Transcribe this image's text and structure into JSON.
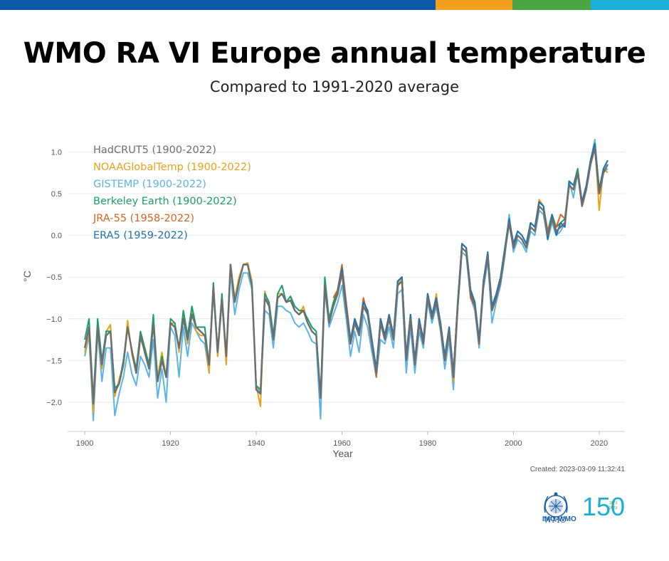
{
  "header": {
    "title": "WMO RA VI Europe annual temperature",
    "subtitle": "Compared to 1991-2020 average",
    "bar_colors": [
      "#0a5aa8",
      "#f2a11f",
      "#4aa545",
      "#1aafd8"
    ]
  },
  "footer": {
    "created": "Created: 2023-03-09 11:32:41",
    "wmo_label": "WMO",
    "anniv_label": "IMO-WMO",
    "anniv_digits": "150",
    "anniv_years": [
      "1873",
      "2023"
    ]
  },
  "chart_data": {
    "type": "line",
    "xlabel": "Year",
    "ylabel": "°C",
    "xlim": [
      1896,
      2026
    ],
    "ylim": [
      -2.35,
      1.2
    ],
    "xticks": [
      1900,
      1920,
      1940,
      1960,
      1980,
      2000,
      2020
    ],
    "yticks": [
      1.0,
      0.5,
      0.0,
      -0.5,
      -1.0,
      -1.5,
      -2.0
    ],
    "ytick_labels": [
      "1.0",
      "0.5",
      "0.0",
      "−0.5",
      "−1.0",
      "−1.5",
      "−2.0"
    ],
    "grid": true,
    "legend": "top-left",
    "base_years": [
      1900,
      2022
    ],
    "base_values": [
      -1.35,
      -1.1,
      -2.02,
      -1.1,
      -1.55,
      -1.2,
      -1.15,
      -1.88,
      -1.78,
      -1.55,
      -1.1,
      -1.38,
      -1.65,
      -1.2,
      -1.4,
      -1.6,
      -1.05,
      -1.75,
      -1.5,
      -1.7,
      -1.05,
      -1.1,
      -1.35,
      -1.0,
      -1.25,
      -0.95,
      -1.1,
      -1.15,
      -1.2,
      -1.55,
      -0.62,
      -1.4,
      -0.75,
      -1.45,
      -0.35,
      -0.8,
      -0.55,
      -0.35,
      -0.35,
      -0.6,
      -1.85,
      -1.9,
      -0.75,
      -0.85,
      -1.25,
      -0.75,
      -0.7,
      -0.8,
      -0.78,
      -0.9,
      -0.95,
      -0.9,
      -1.05,
      -1.15,
      -1.2,
      -1.95,
      -0.6,
      -1.05,
      -0.85,
      -0.7,
      -0.45,
      -0.9,
      -1.3,
      -1.05,
      -1.2,
      -0.85,
      -0.95,
      -1.3,
      -1.65,
      -1.05,
      -1.25,
      -1.0,
      -1.25,
      -0.6,
      -0.55,
      -1.5,
      -1.0,
      -1.55,
      -1.05,
      -1.3,
      -0.75,
      -1.0,
      -0.8,
      -1.1,
      -1.5,
      -1.15,
      -1.7,
      -0.85,
      -0.15,
      -0.2,
      -0.7,
      -0.85,
      -1.3,
      -0.6,
      -0.25,
      -0.9,
      -0.75,
      -0.55,
      -0.2,
      0.15,
      -0.15,
      0.0,
      -0.05,
      -0.15,
      0.1,
      0.05,
      0.35,
      0.3,
      0.0,
      0.2,
      0.05,
      0.1,
      0.15,
      0.6,
      0.55,
      0.75,
      0.35,
      0.55,
      0.85,
      1.05,
      0.5,
      0.75,
      0.85
    ],
    "series": [
      {
        "name": "HadCRUT5 (1900-2022)",
        "color": "#6e6e6e",
        "start": 1900,
        "offsets": [
          0.0,
          0.0,
          0.0,
          0.0,
          0.0,
          0.0,
          0.0,
          0.0,
          0.0,
          0.0,
          0.0,
          0.0,
          0.0,
          0.0,
          0.0,
          0.0,
          0.0,
          0.0,
          0.0,
          0.0,
          0.0,
          0.0,
          0.0,
          0.0,
          0.0,
          0.0,
          0.0,
          0.0,
          0.0,
          0.0,
          0.0,
          0.0,
          0.0,
          0.0,
          0.0,
          0.0,
          0.0,
          0.0,
          0.0,
          0.0,
          0.0,
          0.0,
          0.0,
          0.0,
          0.0,
          0.0,
          0.0,
          0.0,
          0.0,
          0.0,
          0.0,
          0.0,
          0.0,
          0.0,
          0.0,
          0.0,
          0.0,
          0.0,
          0.0,
          0.0,
          0.0,
          0.0,
          0.0,
          0.0,
          0.0,
          0.0,
          0.0,
          0.0,
          0.0,
          0.0,
          0.0,
          0.0,
          0.0,
          0.0,
          0.0,
          0.0,
          0.0,
          0.0,
          0.0,
          0.0,
          0.0,
          0.0,
          0.0,
          0.0,
          0.0,
          0.0,
          0.0,
          0.0,
          0.0,
          0.0,
          0.0,
          0.0,
          0.0,
          0.0,
          0.0,
          0.0,
          0.0,
          0.0,
          0.0,
          0.0,
          0.0,
          0.0,
          0.0,
          0.0,
          0.0,
          0.0,
          0.0,
          0.0,
          0.0,
          0.0,
          0.0,
          0.0,
          0.0,
          0.0,
          0.0,
          0.0,
          0.0,
          0.0,
          0.0,
          0.0,
          0.0,
          0.0,
          0.0
        ]
      },
      {
        "name": "NOAAGlobalTemp (1900-2022)",
        "color": "#e8a317",
        "start": 1900,
        "offsets": [
          -0.05,
          -0.05,
          -0.1,
          0.02,
          -0.05,
          0.05,
          0.08,
          -0.05,
          0.05,
          0.0,
          0.08,
          -0.05,
          0.0,
          -0.05,
          0.05,
          0.05,
          0.0,
          0.05,
          0.1,
          0.0,
          0.0,
          0.05,
          -0.05,
          0.05,
          -0.05,
          0.05,
          -0.05,
          -0.05,
          0.0,
          -0.1,
          0.05,
          -0.05,
          0.0,
          -0.1,
          0.0,
          0.05,
          0.05,
          0.0,
          0.02,
          0.05,
          0.05,
          -0.15,
          0.08,
          0.0,
          0.05,
          0.05,
          0.0,
          0.0,
          0.05,
          0.0,
          0.0,
          0.05,
          0.0,
          0.0,
          0.0,
          0.0,
          0.0,
          0.0,
          0.05,
          0.05,
          0.0,
          0.0,
          0.0,
          0.05,
          0.0,
          0.0,
          0.0,
          0.0,
          0.0,
          0.0,
          0.0,
          0.05,
          0.0,
          0.0,
          0.05,
          0.0,
          0.05,
          0.0,
          0.0,
          0.05,
          0.05,
          0.0,
          0.1,
          0.0,
          0.0,
          0.05,
          -0.05,
          0.0,
          0.05,
          0.05,
          0.0,
          0.0,
          0.0,
          0.05,
          0.0,
          0.0,
          0.0,
          0.0,
          0.0,
          0.0,
          0.0,
          0.0,
          0.0,
          0.0,
          0.0,
          0.0,
          0.08,
          0.05,
          0.05,
          0.0,
          0.0,
          0.0,
          0.0,
          0.0,
          0.0,
          0.0,
          0.05,
          0.0,
          0.05,
          0.05,
          -0.2,
          0.05,
          -0.1
        ]
      },
      {
        "name": "GISTEMP (1900-2022)",
        "color": "#5ab4e8",
        "start": 1900,
        "offsets": [
          -0.1,
          -0.1,
          -0.2,
          -0.05,
          -0.2,
          -0.15,
          -0.2,
          -0.28,
          -0.12,
          -0.15,
          -0.3,
          -0.28,
          -0.15,
          -0.25,
          -0.15,
          -0.1,
          -0.2,
          -0.2,
          -0.1,
          -0.3,
          -0.05,
          -0.1,
          -0.35,
          -0.1,
          -0.2,
          -0.1,
          -0.05,
          -0.1,
          -0.1,
          -0.1,
          -0.05,
          -0.05,
          -0.05,
          -0.05,
          -0.1,
          -0.15,
          -0.1,
          -0.1,
          -0.1,
          -0.05,
          0.05,
          0.0,
          -0.15,
          -0.1,
          -0.1,
          -0.1,
          -0.15,
          -0.1,
          -0.15,
          -0.15,
          -0.15,
          -0.15,
          -0.1,
          -0.12,
          -0.1,
          -0.25,
          -0.05,
          -0.05,
          -0.1,
          -0.1,
          -0.15,
          -0.1,
          -0.15,
          -0.1,
          -0.2,
          -0.1,
          -0.15,
          -0.1,
          -0.05,
          -0.2,
          -0.05,
          -0.1,
          -0.1,
          -0.1,
          -0.1,
          -0.15,
          -0.1,
          -0.1,
          -0.1,
          -0.05,
          -0.05,
          -0.05,
          -0.05,
          -0.05,
          -0.1,
          -0.1,
          -0.15,
          -0.05,
          -0.05,
          -0.05,
          -0.05,
          -0.05,
          -0.05,
          -0.05,
          -0.05,
          -0.15,
          -0.05,
          -0.05,
          -0.05,
          0.1,
          -0.05,
          -0.05,
          -0.05,
          -0.05,
          -0.05,
          -0.05,
          -0.05,
          -0.05,
          -0.05,
          -0.05,
          -0.05,
          -0.05,
          0.0,
          0.05,
          -0.1,
          0.0,
          0.05,
          0.05,
          0.05,
          0.1,
          0.05,
          0.0,
          -0.05
        ]
      },
      {
        "name": "Berkeley Earth (1900-2022)",
        "color": "#1a9e6e",
        "start": 1900,
        "offsets": [
          0.1,
          0.1,
          0.05,
          0.1,
          0.05,
          0.05,
          0.0,
          0.05,
          0.0,
          0.05,
          0.0,
          0.0,
          0.05,
          0.05,
          0.05,
          0.05,
          0.1,
          0.0,
          0.05,
          0.0,
          0.05,
          0.05,
          0.0,
          0.1,
          0.05,
          0.1,
          0.0,
          0.05,
          0.1,
          0.0,
          0.05,
          0.0,
          0.05,
          0.0,
          0.0,
          0.0,
          0.0,
          0.0,
          0.0,
          0.0,
          0.05,
          0.05,
          0.05,
          0.05,
          0.05,
          0.05,
          0.1,
          0.0,
          0.05,
          0.05,
          0.05,
          0.0,
          0.05,
          0.05,
          0.05,
          0.0,
          0.1,
          0.05,
          0.05,
          0.05,
          0.05,
          0.05,
          0.05,
          0.05,
          0.05,
          0.05,
          0.05,
          0.05,
          0.05,
          0.05,
          0.05,
          0.05,
          0.05,
          0.05,
          0.05,
          0.05,
          0.05,
          0.05,
          0.05,
          0.05,
          0.05,
          0.05,
          0.05,
          0.05,
          0.05,
          0.05,
          0.05,
          0.05,
          0.05,
          0.05,
          0.05,
          0.05,
          0.05,
          0.05,
          0.05,
          0.05,
          0.05,
          0.05,
          0.05,
          0.05,
          0.05,
          0.05,
          0.05,
          0.05,
          0.05,
          0.05,
          0.05,
          0.05,
          0.05,
          0.05,
          0.05,
          0.05,
          0.05,
          0.05,
          0.05,
          0.05,
          0.05,
          0.05,
          0.05,
          0.05,
          0.05,
          0.05,
          0.05
        ]
      },
      {
        "name": "JRA-55 (1958-2022)",
        "color": "#d4641e",
        "start": 1958,
        "offsets": [
          0.1,
          0.05,
          0.1,
          0.1,
          0.05,
          0.05,
          0.05,
          0.1,
          0.0,
          0.05,
          -0.05,
          0.05,
          0.05,
          0.05,
          0.05,
          0.05,
          0.05,
          0.05,
          0.05,
          0.05,
          0.05,
          0.05,
          0.05,
          0.05,
          0.05,
          0.05,
          0.05,
          0.05,
          0.05,
          0.05,
          0.05,
          0.05,
          -0.05,
          0.0,
          0.0,
          0.0,
          0.0,
          0.0,
          0.0,
          0.0,
          0.0,
          0.0,
          0.0,
          0.0,
          0.0,
          0.0,
          0.0,
          0.0,
          0.0,
          0.0,
          0.05,
          0.0,
          0.05,
          0.15,
          0.05,
          0.0,
          0.0,
          0.0,
          0.0,
          0.0,
          0.0,
          0.0,
          0.05,
          0.0,
          0.0
        ]
      },
      {
        "name": "ERA5 (1959-2022)",
        "color": "#1e73b4",
        "start": 1959,
        "offsets": [
          0.05,
          0.05,
          0.05,
          0.05,
          0.05,
          0.05,
          0.05,
          0.05,
          0.05,
          0.05,
          0.05,
          0.05,
          0.05,
          0.05,
          0.05,
          0.05,
          0.05,
          0.05,
          0.05,
          0.05,
          0.05,
          0.05,
          0.05,
          0.05,
          0.05,
          0.05,
          0.05,
          0.05,
          0.05,
          0.05,
          0.05,
          0.05,
          0.05,
          0.05,
          0.05,
          0.05,
          0.05,
          0.05,
          0.05,
          0.05,
          0.05,
          0.05,
          0.05,
          0.05,
          0.05,
          0.05,
          0.05,
          0.05,
          0.05,
          -0.05,
          0.05,
          -0.05,
          0.05,
          -0.05,
          0.05,
          0.05,
          0.0,
          0.05,
          0.05,
          0.05,
          0.05,
          0.05,
          0.05,
          0.05
        ]
      }
    ]
  }
}
